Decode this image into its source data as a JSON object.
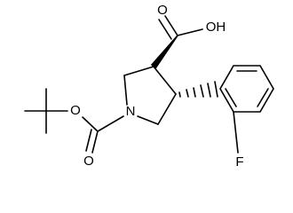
{
  "atoms": {
    "carbonyl_oxygen_top": "O",
    "hydroxyl": "OH",
    "nitrogen": "N",
    "ester_oxygen": "O",
    "carbonyl_oxygen_boc": "O",
    "fluorine": "F"
  }
}
